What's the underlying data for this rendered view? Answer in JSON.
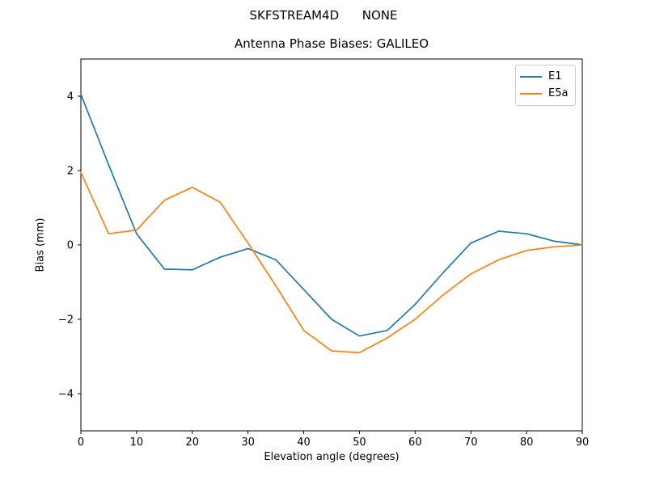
{
  "figure": {
    "suptitle": "SKFSTREAM4D      NONE",
    "background_color": "#ffffff"
  },
  "chart_data": {
    "type": "line",
    "title": "Antenna Phase Biases: GALILEO",
    "xlabel": "Elevation angle (degrees)",
    "ylabel": "Bias (mm)",
    "xlim": [
      0,
      90
    ],
    "ylim": [
      -5,
      5
    ],
    "xticks": [
      0,
      10,
      20,
      30,
      40,
      50,
      60,
      70,
      80,
      90
    ],
    "xticklabels": [
      "0",
      "10",
      "20",
      "30",
      "40",
      "50",
      "60",
      "70",
      "80",
      "90"
    ],
    "yticks": [
      -4,
      -2,
      0,
      2,
      4
    ],
    "yticklabels": [
      "−4",
      "−2",
      "0",
      "2",
      "4"
    ],
    "grid": false,
    "legend_position": "upper right",
    "x": [
      0,
      5,
      10,
      15,
      20,
      25,
      30,
      35,
      40,
      45,
      50,
      55,
      60,
      65,
      70,
      75,
      80,
      85,
      90
    ],
    "series": [
      {
        "name": "E1",
        "color": "#1f77b4",
        "values": [
          4.05,
          2.15,
          0.3,
          -0.65,
          -0.67,
          -0.33,
          -0.1,
          -0.4,
          -1.2,
          -2.0,
          -2.45,
          -2.3,
          -1.6,
          -0.75,
          0.05,
          0.37,
          0.3,
          0.1,
          0.0
        ]
      },
      {
        "name": "E5a",
        "color": "#ff7f0e",
        "values": [
          1.95,
          0.3,
          0.4,
          1.2,
          1.55,
          1.15,
          0.05,
          -1.1,
          -2.3,
          -2.85,
          -2.9,
          -2.5,
          -2.0,
          -1.35,
          -0.78,
          -0.4,
          -0.15,
          -0.05,
          0.0
        ]
      }
    ],
    "axis_color": "#000000",
    "tick_label_fontsize": 13
  }
}
